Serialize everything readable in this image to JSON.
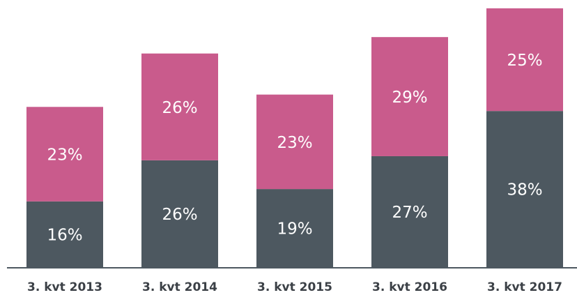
{
  "chart_data": {
    "type": "stacked_bar",
    "categories": [
      "3. kvt 2013",
      "3. kvt 2014",
      "3. kvt 2015",
      "3. kvt 2016",
      "3. kvt 2017"
    ],
    "series": [
      {
        "color": "#4d5860",
        "values": [
          16,
          26,
          19,
          27,
          38
        ],
        "value_labels": [
          "16%",
          "26%",
          "19%",
          "27%",
          "38%"
        ]
      },
      {
        "color": "#c95b8c",
        "values": [
          23,
          26,
          23,
          29,
          25
        ],
        "value_labels": [
          "23%",
          "26%",
          "23%",
          "29%",
          "25%"
        ]
      }
    ]
  }
}
